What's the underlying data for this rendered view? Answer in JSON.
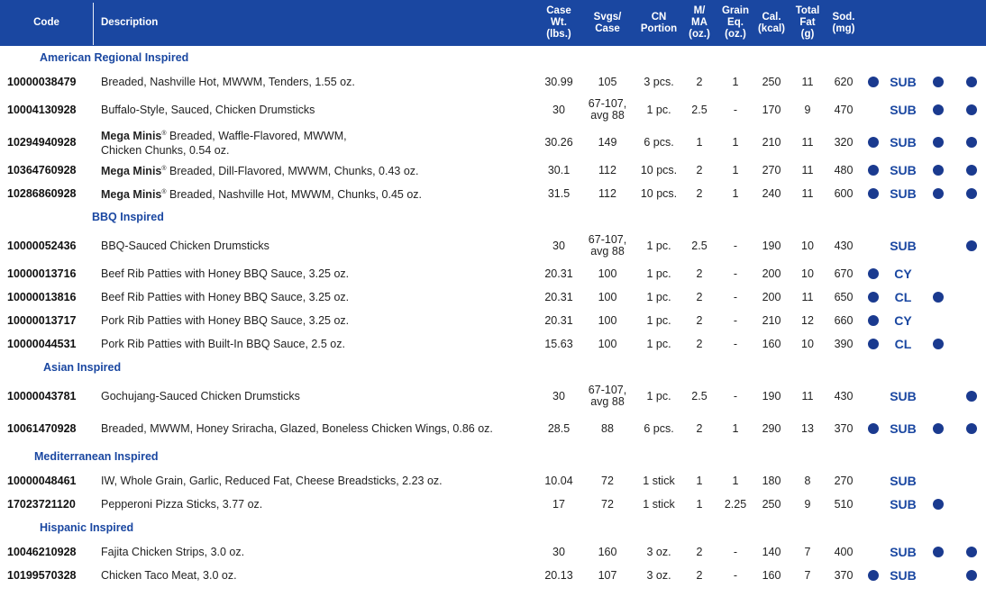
{
  "header": {
    "code": "Code",
    "description": "Description",
    "case_wt": "Case\nWt.\n(lbs.)",
    "svgs": "Svgs/\nCase",
    "cn": "CN\nPortion",
    "mma": "M/\nMA\n(oz.)",
    "grain": "Grain\nEq.\n(oz.)",
    "cal": "Cal.\n(kcal)",
    "fat": "Total\nFat\n(g)",
    "sod": "Sod.\n(mg)"
  },
  "colors": {
    "header_bg": "#1a47a1",
    "section_text": "#1a47a1",
    "dot": "#1a3a8f"
  },
  "sections": [
    {
      "title": "American Regional Inspired",
      "rows": [
        {
          "code": "10000038479",
          "brand": "",
          "desc": "Breaded, Nashville Hot, MWWM, Tenders, 1.55 oz.",
          "wt": "30.99",
          "svgs": "105",
          "cn": "3 pcs.",
          "mma": "2",
          "grain": "1",
          "cal": "250",
          "fat": "11",
          "sod": "620",
          "d1": true,
          "credit": "SUB",
          "d2": true,
          "d3": true
        },
        {
          "code": "10004130928",
          "brand": "",
          "desc": "Buffalo-Style, Sauced, Chicken Drumsticks",
          "wt": "30",
          "svgs": "67-107,\navg 88",
          "cn": "1 pc.",
          "mma": "2.5",
          "grain": "-",
          "cal": "170",
          "fat": "9",
          "sod": "470",
          "d1": false,
          "credit": "SUB",
          "d2": true,
          "d3": true
        },
        {
          "code": "10294940928",
          "brand": "Mega Minis",
          "desc": "Breaded, Waffle-Flavored, MWWM,",
          "desc2": "Chicken Chunks, 0.54 oz.",
          "wt": "30.26",
          "svgs": "149",
          "cn": "6 pcs.",
          "mma": "1",
          "grain": "1",
          "cal": "210",
          "fat": "11",
          "sod": "320",
          "d1": true,
          "credit": "SUB",
          "d2": true,
          "d3": true
        },
        {
          "code": "10364760928",
          "brand": "Mega Minis",
          "desc": "Breaded, Dill-Flavored, MWWM, Chunks, 0.43 oz.",
          "wt": "30.1",
          "svgs": "112",
          "cn": "10 pcs.",
          "mma": "2",
          "grain": "1",
          "cal": "270",
          "fat": "11",
          "sod": "480",
          "d1": true,
          "credit": "SUB",
          "d2": true,
          "d3": true
        },
        {
          "code": "10286860928",
          "brand": "Mega Minis",
          "desc": "Breaded, Nashville Hot, MWWM, Chunks, 0.45 oz.",
          "wt": "31.5",
          "svgs": "112",
          "cn": "10 pcs.",
          "mma": "2",
          "grain": "1",
          "cal": "240",
          "fat": "11",
          "sod": "600",
          "d1": true,
          "credit": "SUB",
          "d2": true,
          "d3": true
        }
      ]
    },
    {
      "title": "BBQ Inspired",
      "rows": [
        {
          "code": "10000052436",
          "brand": "",
          "desc": "BBQ-Sauced Chicken Drumsticks",
          "wt": "30",
          "svgs": "67-107,\navg 88",
          "cn": "1 pc.",
          "mma": "2.5",
          "grain": "-",
          "cal": "190",
          "fat": "10",
          "sod": "430",
          "d1": false,
          "credit": "SUB",
          "d2": false,
          "d3": true
        },
        {
          "code": "10000013716",
          "brand": "",
          "desc": "Beef Rib Patties with Honey BBQ Sauce, 3.25 oz.",
          "wt": "20.31",
          "svgs": "100",
          "cn": "1 pc.",
          "mma": "2",
          "grain": "-",
          "cal": "200",
          "fat": "10",
          "sod": "670",
          "d1": true,
          "credit": "CY",
          "d2": false,
          "d3": false
        },
        {
          "code": "10000013816",
          "brand": "",
          "desc": "Beef Rib Patties with Honey BBQ Sauce, 3.25 oz.",
          "wt": "20.31",
          "svgs": "100",
          "cn": "1 pc.",
          "mma": "2",
          "grain": "-",
          "cal": "200",
          "fat": "11",
          "sod": "650",
          "d1": true,
          "credit": "CL",
          "d2": true,
          "d3": false
        },
        {
          "code": "10000013717",
          "brand": "",
          "desc": "Pork Rib Patties with Honey BBQ Sauce, 3.25 oz.",
          "wt": "20.31",
          "svgs": "100",
          "cn": "1 pc.",
          "mma": "2",
          "grain": "-",
          "cal": "210",
          "fat": "12",
          "sod": "660",
          "d1": true,
          "credit": "CY",
          "d2": false,
          "d3": false
        },
        {
          "code": "10000044531",
          "brand": "",
          "desc": "Pork Rib Patties with Built-In BBQ Sauce, 2.5 oz.",
          "wt": "15.63",
          "svgs": "100",
          "cn": "1 pc.",
          "mma": "2",
          "grain": "-",
          "cal": "160",
          "fat": "10",
          "sod": "390",
          "d1": true,
          "credit": "CL",
          "d2": true,
          "d3": false
        }
      ]
    },
    {
      "title": "Asian Inspired",
      "rows": [
        {
          "code": "10000043781",
          "brand": "",
          "desc": "Gochujang-Sauced Chicken Drumsticks",
          "wt": "30",
          "svgs": "67-107,\navg 88",
          "cn": "1 pc.",
          "mma": "2.5",
          "grain": "-",
          "cal": "190",
          "fat": "11",
          "sod": "430",
          "d1": false,
          "credit": "SUB",
          "d2": false,
          "d3": true
        },
        {
          "code": "10061470928",
          "brand": "",
          "desc": "Breaded, MWWM, Honey Sriracha, Glazed, Boneless Chicken Wings, 0.86 oz.",
          "wt": "28.5",
          "svgs": "88",
          "cn": "6 pcs.",
          "mma": "2",
          "grain": "1",
          "cal": "290",
          "fat": "13",
          "sod": "370",
          "d1": true,
          "credit": "SUB",
          "d2": true,
          "d3": true
        }
      ]
    },
    {
      "title": "Mediterranean Inspired",
      "rows": [
        {
          "code": "10000048461",
          "brand": "",
          "desc": "IW, Whole Grain, Garlic, Reduced Fat, Cheese Breadsticks, 2.23 oz.",
          "wt": "10.04",
          "svgs": "72",
          "cn": "1 stick",
          "mma": "1",
          "grain": "1",
          "cal": "180",
          "fat": "8",
          "sod": "270",
          "d1": false,
          "credit": "SUB",
          "d2": false,
          "d3": false
        },
        {
          "code": "17023721120",
          "brand": "",
          "desc": "Pepperoni Pizza Sticks, 3.77 oz.",
          "wt": "17",
          "svgs": "72",
          "cn": "1 stick",
          "mma": "1",
          "grain": "2.25",
          "cal": "250",
          "fat": "9",
          "sod": "510",
          "d1": false,
          "credit": "SUB",
          "d2": true,
          "d3": false
        }
      ]
    },
    {
      "title": "Hispanic Inspired",
      "rows": [
        {
          "code": "10046210928",
          "brand": "",
          "desc": "Fajita Chicken Strips, 3.0 oz.",
          "wt": "30",
          "svgs": "160",
          "cn": "3 oz.",
          "mma": "2",
          "grain": "-",
          "cal": "140",
          "fat": "7",
          "sod": "400",
          "d1": false,
          "credit": "SUB",
          "d2": true,
          "d3": true
        },
        {
          "code": "10199570328",
          "brand": "",
          "desc": "Chicken Taco Meat, 3.0 oz.",
          "wt": "20.13",
          "svgs": "107",
          "cn": "3 oz.",
          "mma": "2",
          "grain": "-",
          "cal": "160",
          "fat": "7",
          "sod": "370",
          "d1": true,
          "credit": "SUB",
          "d2": false,
          "d3": true
        }
      ]
    }
  ]
}
